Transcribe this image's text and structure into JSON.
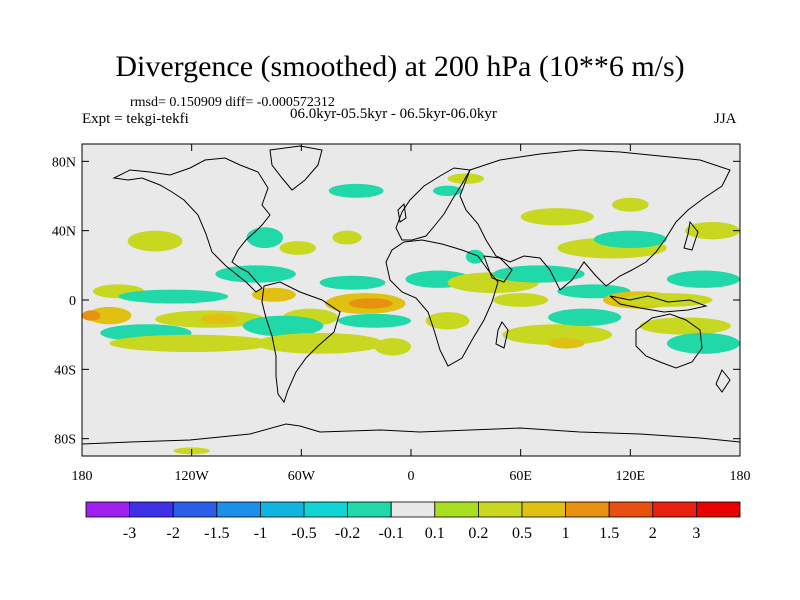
{
  "chart_data": {
    "type": "heatmap",
    "title": "Divergence (smoothed) at 200 hPa (10**6 m/s)",
    "stats_text": "rmsd= 0.150909 diff= -0.000572312",
    "experiment": "Expt = tekgi-tekfi",
    "period": "06.0kyr-05.5kyr - 06.5kyr-06.0kyr",
    "season": "JJA",
    "xaxis": {
      "range": [
        -180,
        180
      ],
      "ticks": [
        -180,
        -120,
        -60,
        0,
        60,
        120,
        180
      ],
      "tick_labels": [
        "180",
        "120W",
        "60W",
        "0",
        "60E",
        "120E",
        "180"
      ]
    },
    "yaxis": {
      "range": [
        -90,
        90
      ],
      "ticks": [
        80,
        40,
        0,
        -40,
        -80
      ],
      "tick_labels": [
        "80N",
        "40N",
        "0",
        "40S",
        "80S"
      ]
    },
    "colorbar": {
      "labels": [
        "-3",
        "-2",
        "-1.5",
        "-1",
        "-0.5",
        "-0.2",
        "-0.1",
        "0.1",
        "0.2",
        "0.5",
        "1",
        "1.5",
        "2",
        "3"
      ],
      "colors": [
        "#a020f0",
        "#4030e8",
        "#2a5ee8",
        "#1a90e8",
        "#10b4e0",
        "#10d4d4",
        "#20d8a8",
        "#e8e8e8",
        "#a8e020",
        "#c8d820",
        "#e0c010",
        "#e89010",
        "#e85010",
        "#e82010",
        "#e80000"
      ]
    },
    "anomaly_regions": [
      {
        "lon": -140,
        "lat": 34,
        "rx": 15,
        "ry": 6,
        "level": 0.2
      },
      {
        "lon": -160,
        "lat": 5,
        "rx": 14,
        "ry": 4,
        "level": 0.2
      },
      {
        "lon": -165,
        "lat": -9,
        "rx": 12,
        "ry": 5,
        "level": 0.5
      },
      {
        "lon": -175,
        "lat": -9,
        "rx": 5,
        "ry": 3,
        "level": 1.0
      },
      {
        "lon": -130,
        "lat": 2,
        "rx": 30,
        "ry": 4,
        "level": -0.2
      },
      {
        "lon": -145,
        "lat": -19,
        "rx": 25,
        "ry": 5,
        "level": -0.2
      },
      {
        "lon": -110,
        "lat": -11,
        "rx": 30,
        "ry": 5,
        "level": 0.2
      },
      {
        "lon": -105,
        "lat": -11,
        "rx": 10,
        "ry": 3,
        "level": 0.5
      },
      {
        "lon": -120,
        "lat": -25,
        "rx": 45,
        "ry": 5,
        "level": 0.2
      },
      {
        "lon": -80,
        "lat": 36,
        "rx": 10,
        "ry": 6,
        "level": -0.2
      },
      {
        "lon": -62,
        "lat": 30,
        "rx": 10,
        "ry": 4,
        "level": 0.2
      },
      {
        "lon": -85,
        "lat": 15,
        "rx": 22,
        "ry": 5,
        "level": -0.2
      },
      {
        "lon": -75,
        "lat": 3,
        "rx": 12,
        "ry": 4,
        "level": 0.5
      },
      {
        "lon": -55,
        "lat": -10,
        "rx": 15,
        "ry": 5,
        "level": 0.2
      },
      {
        "lon": -70,
        "lat": -15,
        "rx": 22,
        "ry": 6,
        "level": -0.2
      },
      {
        "lon": -50,
        "lat": -25,
        "rx": 35,
        "ry": 6,
        "level": 0.2
      },
      {
        "lon": -35,
        "lat": 36,
        "rx": 8,
        "ry": 4,
        "level": 0.2
      },
      {
        "lon": -32,
        "lat": 10,
        "rx": 18,
        "ry": 4,
        "level": -0.2
      },
      {
        "lon": -25,
        "lat": -2,
        "rx": 22,
        "ry": 6,
        "level": 0.5
      },
      {
        "lon": -22,
        "lat": -2,
        "rx": 12,
        "ry": 3,
        "level": 1.0
      },
      {
        "lon": -20,
        "lat": -12,
        "rx": 20,
        "ry": 4,
        "level": -0.2
      },
      {
        "lon": -10,
        "lat": -27,
        "rx": 10,
        "ry": 5,
        "level": 0.2
      },
      {
        "lon": 15,
        "lat": 12,
        "rx": 18,
        "ry": 5,
        "level": -0.2
      },
      {
        "lon": 20,
        "lat": -12,
        "rx": 12,
        "ry": 5,
        "level": 0.2
      },
      {
        "lon": 35,
        "lat": 25,
        "rx": 5,
        "ry": 4,
        "level": -0.2
      },
      {
        "lon": 45,
        "lat": 10,
        "rx": 25,
        "ry": 6,
        "level": 0.2
      },
      {
        "lon": 70,
        "lat": 15,
        "rx": 25,
        "ry": 5,
        "level": -0.2
      },
      {
        "lon": 60,
        "lat": 0,
        "rx": 15,
        "ry": 4,
        "level": 0.2
      },
      {
        "lon": 80,
        "lat": -20,
        "rx": 30,
        "ry": 6,
        "level": 0.2
      },
      {
        "lon": 85,
        "lat": -25,
        "rx": 10,
        "ry": 3,
        "level": 0.5
      },
      {
        "lon": 100,
        "lat": 5,
        "rx": 20,
        "ry": 4,
        "level": -0.2
      },
      {
        "lon": 95,
        "lat": -10,
        "rx": 20,
        "ry": 5,
        "level": -0.2
      },
      {
        "lon": 110,
        "lat": 30,
        "rx": 30,
        "ry": 6,
        "level": 0.2
      },
      {
        "lon": 120,
        "lat": 35,
        "rx": 20,
        "ry": 5,
        "level": -0.2
      },
      {
        "lon": 125,
        "lat": 0,
        "rx": 20,
        "ry": 5,
        "level": 0.5
      },
      {
        "lon": 140,
        "lat": 0,
        "rx": 25,
        "ry": 4,
        "level": 0.2
      },
      {
        "lon": 150,
        "lat": -15,
        "rx": 25,
        "ry": 5,
        "level": 0.2
      },
      {
        "lon": 160,
        "lat": 12,
        "rx": 20,
        "ry": 5,
        "level": -0.2
      },
      {
        "lon": 160,
        "lat": -25,
        "rx": 20,
        "ry": 6,
        "level": -0.2
      },
      {
        "lon": 165,
        "lat": 40,
        "rx": 15,
        "ry": 5,
        "level": 0.2
      },
      {
        "lon": 80,
        "lat": 48,
        "rx": 20,
        "ry": 5,
        "level": 0.2
      },
      {
        "lon": 120,
        "lat": 55,
        "rx": 10,
        "ry": 4,
        "level": 0.2
      },
      {
        "lon": -30,
        "lat": 63,
        "rx": 15,
        "ry": 4,
        "level": -0.2
      },
      {
        "lon": 30,
        "lat": 70,
        "rx": 10,
        "ry": 3,
        "level": 0.2
      },
      {
        "lon": 20,
        "lat": 63,
        "rx": 8,
        "ry": 3,
        "level": -0.2
      },
      {
        "lon": -120,
        "lat": -87,
        "rx": 10,
        "ry": 2,
        "level": 0.2
      }
    ]
  }
}
